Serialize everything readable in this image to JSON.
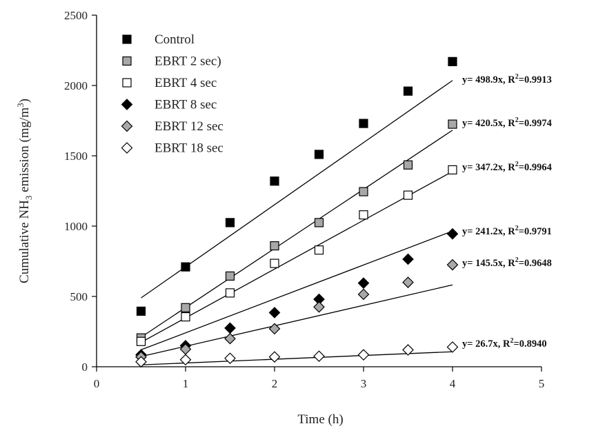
{
  "chart_data": {
    "type": "scatter",
    "xlabel": "Time (h)",
    "ylabel_parts": {
      "pre": "Cumulative NH",
      "sub": "3",
      "mid": " emission (mg/m",
      "sup": "3",
      "post": ")"
    },
    "xlim": [
      0,
      5
    ],
    "ylim": [
      0,
      2500
    ],
    "xticks": [
      0,
      1,
      2,
      3,
      4,
      5
    ],
    "yticks": [
      0,
      500,
      1000,
      1500,
      2000,
      2500
    ],
    "grid": false,
    "legend_position": "top-left",
    "series": [
      {
        "name": "Control",
        "marker": "square",
        "fill": "#000000",
        "stroke": "#000000",
        "x": [
          0.5,
          1.0,
          1.5,
          2.0,
          2.5,
          3.0,
          3.5,
          4.0
        ],
        "y": [
          395,
          710,
          1025,
          1320,
          1510,
          1730,
          1960,
          2170
        ],
        "fit_slope": 498.9,
        "equation": {
          "pre": "y= 498.9x, R",
          "sup": "2",
          "post": "=0.9913"
        }
      },
      {
        "name": "EBRT 2 sec)",
        "marker": "square",
        "fill": "#a8a8a8",
        "stroke": "#000000",
        "x": [
          0.5,
          1.0,
          1.5,
          2.0,
          2.5,
          3.0,
          3.5,
          4.0
        ],
        "y": [
          205,
          420,
          645,
          860,
          1025,
          1245,
          1435,
          1725
        ],
        "fit_slope": 420.5,
        "equation": {
          "pre": "y= 420.5x, R",
          "sup": "2",
          "post": "=0.9974"
        }
      },
      {
        "name": "EBRT 4 sec",
        "marker": "square",
        "fill": "#ffffff",
        "stroke": "#000000",
        "x": [
          0.5,
          1.0,
          1.5,
          2.0,
          2.5,
          3.0,
          3.5,
          4.0
        ],
        "y": [
          180,
          355,
          525,
          735,
          830,
          1080,
          1220,
          1400
        ],
        "fit_slope": 347.2,
        "equation": {
          "pre": "y= 347.2x, R",
          "sup": "2",
          "post": "=0.9964"
        }
      },
      {
        "name": "EBRT 8 sec",
        "marker": "diamond",
        "fill": "#000000",
        "stroke": "#000000",
        "x": [
          0.5,
          1.0,
          1.5,
          2.0,
          2.5,
          3.0,
          3.5,
          4.0
        ],
        "y": [
          85,
          150,
          275,
          385,
          480,
          595,
          765,
          945
        ],
        "fit_slope": 241.2,
        "equation": {
          "pre": "y= 241.2x, R",
          "sup": "2",
          "post": "=0.9791"
        }
      },
      {
        "name": "EBRT 12 sec",
        "marker": "diamond",
        "fill": "#a8a8a8",
        "stroke": "#000000",
        "x": [
          0.5,
          1.0,
          1.5,
          2.0,
          2.5,
          3.0,
          3.5,
          4.0
        ],
        "y": [
          70,
          125,
          200,
          270,
          425,
          515,
          600,
          725
        ],
        "fit_slope": 145.5,
        "equation": {
          "pre": "y= 145.5x, R",
          "sup": "2",
          "post": "=0.9648"
        }
      },
      {
        "name": "EBRT 18 sec",
        "marker": "diamond",
        "fill": "#ffffff",
        "stroke": "#000000",
        "x": [
          0.5,
          1.0,
          1.5,
          2.0,
          2.5,
          3.0,
          3.5,
          4.0
        ],
        "y": [
          35,
          50,
          60,
          70,
          75,
          85,
          120,
          140
        ],
        "fit_slope": 26.7,
        "equation": {
          "pre": "y= 26.7x, R",
          "sup": "2",
          "post": "=0.8940"
        }
      }
    ]
  }
}
